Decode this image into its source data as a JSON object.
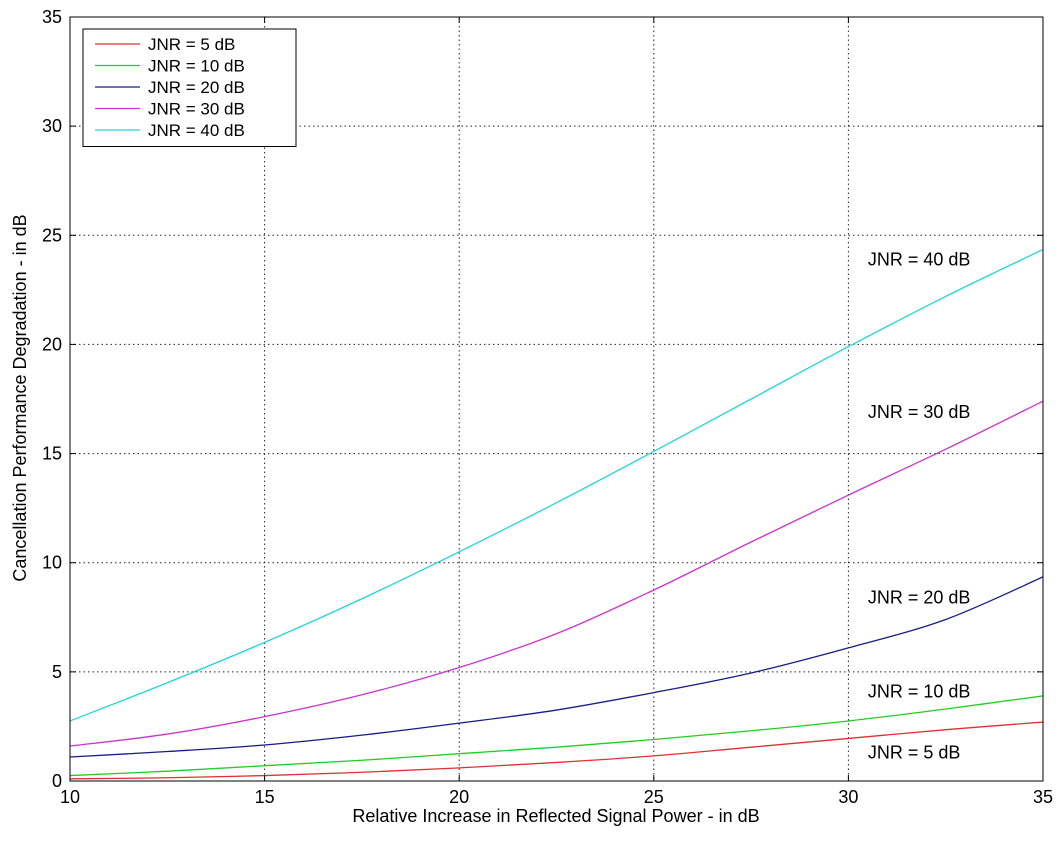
{
  "chart_data": {
    "type": "line",
    "title": "",
    "xlabel": "Relative Increase in Reflected Signal Power - in dB",
    "ylabel": "Cancellation Performance Degradation - in dB",
    "xlim": [
      10,
      35
    ],
    "ylim": [
      0,
      35
    ],
    "x_ticks": [
      "10",
      "15",
      "20",
      "25",
      "30",
      "35"
    ],
    "y_ticks": [
      "0",
      "5",
      "10",
      "15",
      "20",
      "25",
      "30",
      "35"
    ],
    "grid": true,
    "legend_position": "top-left",
    "series": [
      {
        "name": "JNR = 5 dB",
        "color": "#e03030",
        "x": [
          10,
          12.5,
          15,
          17.5,
          20,
          22.5,
          25,
          27.5,
          30,
          32.5,
          35
        ],
        "y": [
          0.1,
          0.15,
          0.25,
          0.4,
          0.6,
          0.85,
          1.15,
          1.55,
          1.95,
          2.35,
          2.7
        ]
      },
      {
        "name": "JNR = 10 dB",
        "color": "#22cc22",
        "x": [
          10,
          12.5,
          15,
          17.5,
          20,
          22.5,
          25,
          27.5,
          30,
          32.5,
          35
        ],
        "y": [
          0.25,
          0.45,
          0.7,
          0.95,
          1.25,
          1.55,
          1.9,
          2.3,
          2.75,
          3.3,
          3.9
        ]
      },
      {
        "name": "JNR = 20 dB",
        "color": "#1a1a8a",
        "x": [
          10,
          12.5,
          15,
          17.5,
          20,
          22.5,
          25,
          27.5,
          30,
          32.5,
          35
        ],
        "y": [
          1.1,
          1.35,
          1.65,
          2.1,
          2.65,
          3.25,
          4.05,
          4.95,
          6.1,
          7.4,
          9.35
        ]
      },
      {
        "name": "JNR = 30 dB",
        "color": "#cc33cc",
        "x": [
          10,
          12.5,
          15,
          17.5,
          20,
          22.5,
          25,
          27.5,
          30,
          32.5,
          35
        ],
        "y": [
          1.6,
          2.15,
          2.95,
          3.95,
          5.2,
          6.75,
          8.75,
          10.95,
          13.1,
          15.2,
          17.4
        ]
      },
      {
        "name": "JNR = 40 dB",
        "color": "#22d6d6",
        "x": [
          10,
          12.5,
          15,
          17.5,
          20,
          22.5,
          25,
          27.5,
          30,
          32.5,
          35
        ],
        "y": [
          2.75,
          4.5,
          6.35,
          8.35,
          10.5,
          12.75,
          15.1,
          17.5,
          19.9,
          22.2,
          24.35
        ]
      }
    ],
    "annotations": [
      {
        "text": "JNR = 40 dB",
        "x": 30.5,
        "y": 23.9
      },
      {
        "text": "JNR = 30 dB",
        "x": 30.5,
        "y": 16.9
      },
      {
        "text": "JNR = 20 dB",
        "x": 30.5,
        "y": 8.4
      },
      {
        "text": "JNR = 10 dB",
        "x": 30.5,
        "y": 4.1
      },
      {
        "text": "JNR = 5 dB",
        "x": 30.5,
        "y": 1.3
      }
    ]
  }
}
